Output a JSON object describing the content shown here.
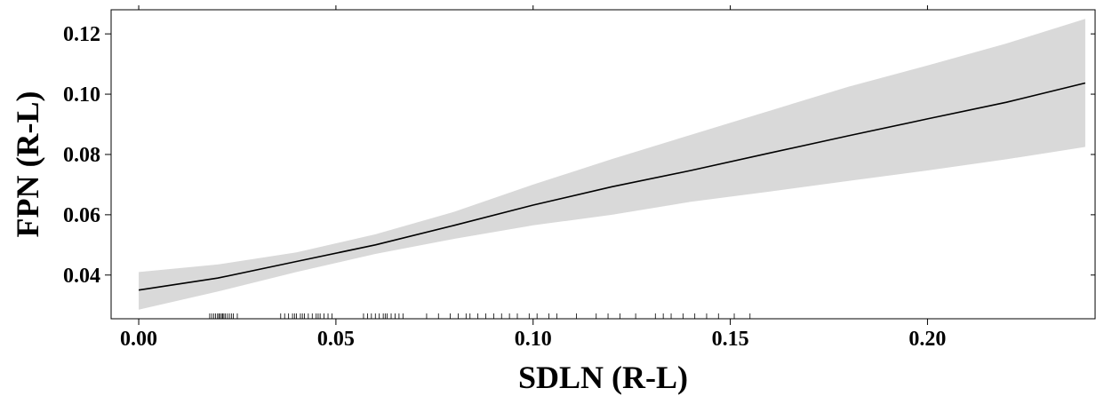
{
  "chart_data": {
    "type": "line",
    "title": "",
    "xlabel": "SDLN (R-L)",
    "ylabel": "FPN (R-L)",
    "xlim": [
      -0.007,
      0.2425
    ],
    "ylim": [
      0.0255,
      0.128
    ],
    "x_ticks": [
      0.0,
      0.05,
      0.1,
      0.15,
      0.2
    ],
    "x_tick_labels": [
      "0.00",
      "0.05",
      "0.10",
      "0.15",
      "0.20"
    ],
    "y_ticks": [
      0.04,
      0.06,
      0.08,
      0.1,
      0.12
    ],
    "y_tick_labels": [
      "0.04",
      "0.06",
      "0.08",
      "0.10",
      "0.12"
    ],
    "grid": false,
    "colors": {
      "line": "#000000",
      "band": "#d9d9d9",
      "axis": "#000000"
    },
    "series": [
      {
        "x": [
          0.0,
          0.02,
          0.04,
          0.06,
          0.08,
          0.1,
          0.12,
          0.14,
          0.16,
          0.18,
          0.2,
          0.22,
          0.24
        ],
        "y": [
          0.035,
          0.039,
          0.0445,
          0.05,
          0.0565,
          0.0632,
          0.0693,
          0.0747,
          0.0805,
          0.0862,
          0.0918,
          0.0973,
          0.1037
        ],
        "lower": [
          0.0285,
          0.0345,
          0.041,
          0.047,
          0.052,
          0.0565,
          0.06,
          0.0643,
          0.0677,
          0.0712,
          0.0747,
          0.0784,
          0.0825
        ],
        "upper": [
          0.041,
          0.0435,
          0.0475,
          0.0535,
          0.061,
          0.07,
          0.0785,
          0.0865,
          0.0945,
          0.1025,
          0.1095,
          0.1168,
          0.125
        ]
      }
    ],
    "rug": [
      0.018,
      0.0185,
      0.019,
      0.0195,
      0.02,
      0.0203,
      0.0206,
      0.021,
      0.0213,
      0.0216,
      0.022,
      0.0225,
      0.023,
      0.0235,
      0.024,
      0.025,
      0.036,
      0.037,
      0.038,
      0.039,
      0.0395,
      0.04,
      0.041,
      0.0415,
      0.042,
      0.043,
      0.044,
      0.045,
      0.0455,
      0.046,
      0.047,
      0.048,
      0.049,
      0.057,
      0.058,
      0.059,
      0.06,
      0.061,
      0.062,
      0.0625,
      0.063,
      0.064,
      0.065,
      0.066,
      0.067,
      0.073,
      0.076,
      0.079,
      0.081,
      0.083,
      0.084,
      0.086,
      0.088,
      0.09,
      0.092,
      0.094,
      0.096,
      0.099,
      0.101,
      0.104,
      0.106,
      0.111,
      0.116,
      0.119,
      0.122,
      0.126,
      0.131,
      0.133,
      0.135,
      0.138,
      0.141,
      0.144,
      0.147,
      0.151,
      0.155
    ]
  }
}
